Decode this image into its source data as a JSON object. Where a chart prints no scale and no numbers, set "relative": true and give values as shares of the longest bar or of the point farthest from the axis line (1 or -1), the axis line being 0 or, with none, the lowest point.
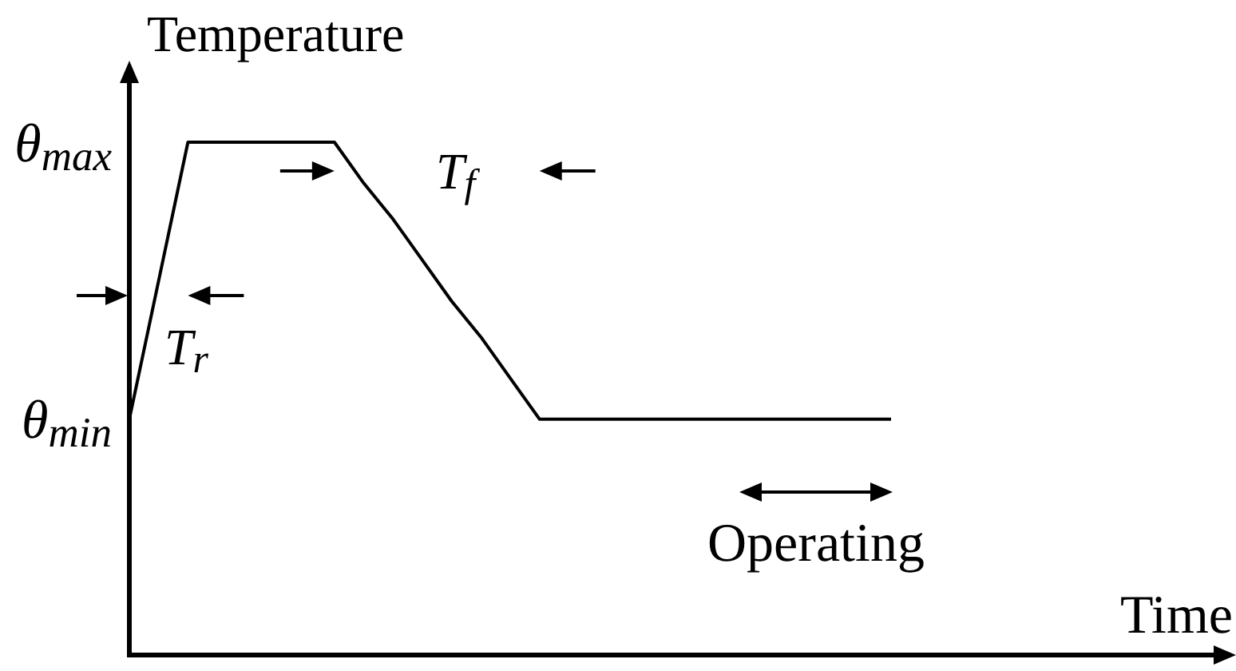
{
  "chart_data": {
    "type": "line",
    "xlabel": "Time",
    "ylabel": "Temperature",
    "categories": [
      null,
      null,
      null,
      null,
      null,
      null,
      null,
      null,
      null,
      null,
      null,
      null,
      null,
      null,
      null,
      null,
      null,
      null,
      null,
      null,
      null,
      null,
      null,
      null,
      null,
      null,
      null
    ],
    "values": [
      0.46,
      0.73,
      1,
      1,
      1,
      1,
      1,
      1,
      0.92,
      0.85,
      0.77,
      0.69,
      0.62,
      0.54,
      0.46,
      0.46,
      0.46,
      0.46,
      0.46,
      0.46,
      0.46,
      0.46,
      0.46,
      0.46,
      0.46,
      0.46,
      0.46
    ],
    "color": "#000000",
    "relative": true,
    "tick_labels": false,
    "annotations": [
      "θ$_{max}$",
      "θ$_{min}$",
      "T$_{r}$",
      "T$_{f}$",
      "Operating"
    ]
  }
}
